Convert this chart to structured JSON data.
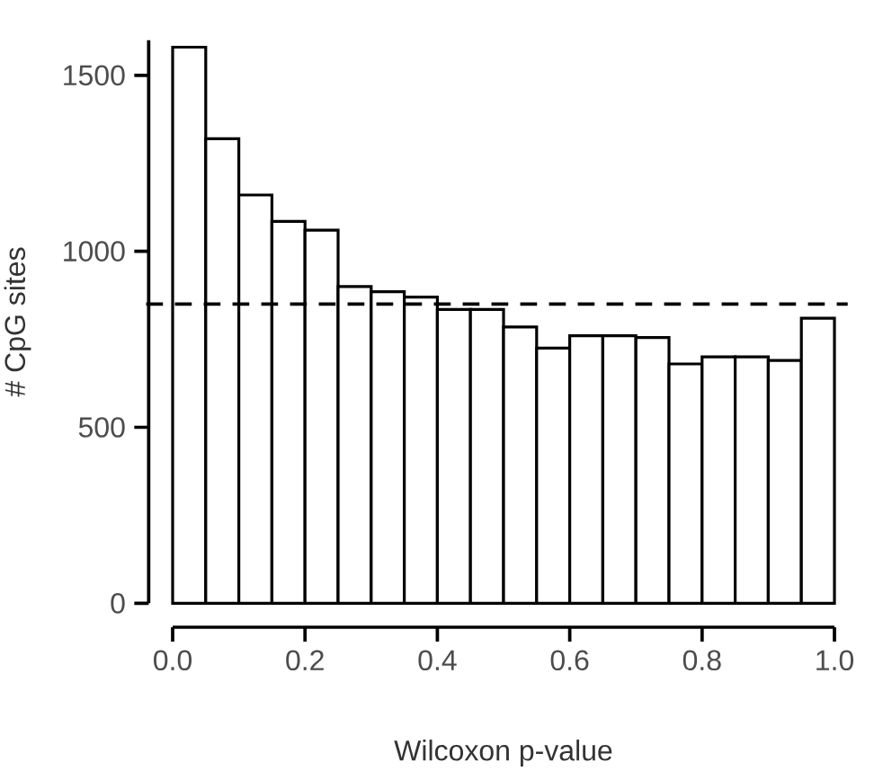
{
  "chart_data": {
    "type": "histogram",
    "xlabel": "Wilcoxon p-value",
    "ylabel": "# CpG sites",
    "bins": [
      0.0,
      0.05,
      0.1,
      0.15,
      0.2,
      0.25,
      0.3,
      0.35,
      0.4,
      0.45,
      0.5,
      0.55,
      0.6,
      0.65,
      0.7,
      0.75,
      0.8,
      0.85,
      0.9,
      0.95,
      1.0
    ],
    "values": [
      1580,
      1320,
      1160,
      1085,
      1060,
      900,
      885,
      870,
      835,
      835,
      785,
      725,
      760,
      760,
      755,
      680,
      700,
      700,
      690,
      810
    ],
    "color": "#ffffff",
    "xlim": [
      0.0,
      1.0
    ],
    "xticks": [
      {
        "value": 0.0,
        "label": "0.0"
      },
      0.2,
      0.4,
      0.6,
      0.8,
      {
        "value": 1.0,
        "label": "1.0"
      }
    ],
    "ylim": [
      0,
      1600
    ],
    "yticks": [
      0,
      500,
      1000,
      1500
    ],
    "ref_lines": [
      {
        "axis": "y",
        "value": 850,
        "line_style": "dashed"
      }
    ]
  }
}
